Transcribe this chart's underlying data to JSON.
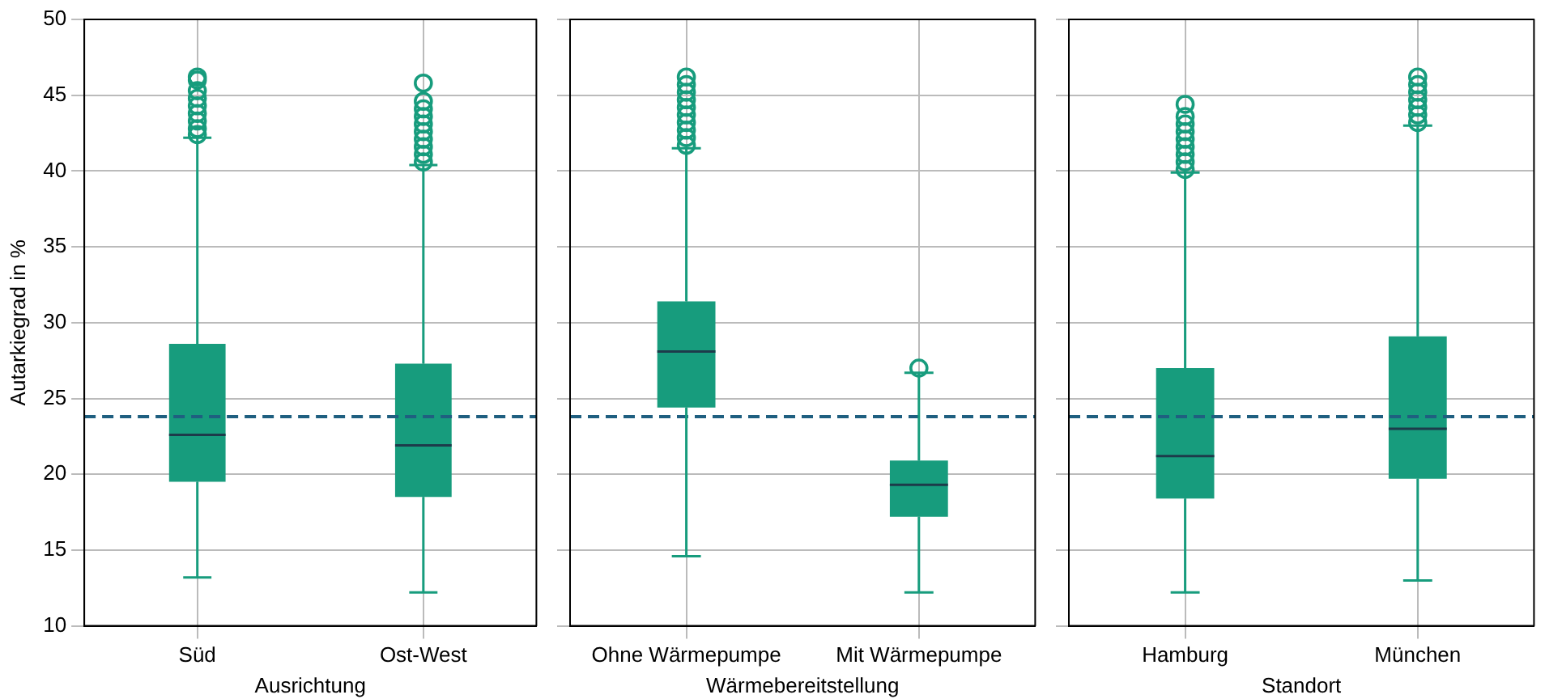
{
  "chart_data": [
    {
      "type": "box",
      "categories": [
        "Süd",
        "Ost-West"
      ],
      "xlabel": "Ausrichtung",
      "ylabel": "Autarkiegrad in %",
      "ylim": [
        10,
        50
      ],
      "yticks": [
        10,
        15,
        20,
        25,
        30,
        35,
        40,
        45,
        50
      ],
      "grid": true,
      "legend": false,
      "color": "#179c7d",
      "boxes": [
        {
          "low": 13.2,
          "q1": 19.5,
          "median": 22.6,
          "q3": 28.6,
          "high": 42.2,
          "outliers": [
            42.4,
            42.8,
            43.3,
            43.8,
            44.3,
            44.8,
            45.3,
            46.0,
            46.2
          ]
        },
        {
          "low": 12.2,
          "q1": 18.5,
          "median": 21.9,
          "q3": 27.3,
          "high": 40.4,
          "outliers": [
            40.6,
            41.1,
            41.6,
            42.1,
            42.6,
            43.1,
            43.6,
            44.1,
            44.6,
            45.8
          ]
        }
      ],
      "ref_lines": [
        {
          "axis": "y",
          "value": 23.8,
          "color": "#1f5f80",
          "line_style": "dashed"
        }
      ]
    },
    {
      "type": "box",
      "categories": [
        "Ohne Wärmepumpe",
        "Mit Wärmepumpe"
      ],
      "xlabel": "Wärmebereitstellung",
      "ylim": [
        10,
        50
      ],
      "yticks": [
        10,
        15,
        20,
        25,
        30,
        35,
        40,
        45,
        50
      ],
      "grid": true,
      "legend": false,
      "tick_labels": "x",
      "color": "#179c7d",
      "boxes": [
        {
          "low": 14.6,
          "q1": 24.4,
          "median": 28.1,
          "q3": 31.4,
          "high": 41.5,
          "outliers": [
            41.7,
            42.2,
            42.7,
            43.2,
            43.7,
            44.2,
            44.7,
            45.2,
            45.7,
            46.2
          ]
        },
        {
          "low": 12.2,
          "q1": 17.2,
          "median": 19.3,
          "q3": 20.9,
          "high": 26.7,
          "outliers": [
            27.0
          ]
        }
      ],
      "ref_lines": [
        {
          "axis": "y",
          "value": 23.8,
          "color": "#1f5f80",
          "line_style": "dashed"
        }
      ]
    },
    {
      "type": "box",
      "categories": [
        "Hamburg",
        "München"
      ],
      "xlabel": "Standort",
      "ylim": [
        10,
        50
      ],
      "yticks": [
        10,
        15,
        20,
        25,
        30,
        35,
        40,
        45,
        50
      ],
      "grid": true,
      "legend": false,
      "tick_labels": "x",
      "color": "#179c7d",
      "boxes": [
        {
          "low": 12.2,
          "q1": 18.4,
          "median": 21.2,
          "q3": 27.0,
          "high": 39.9,
          "outliers": [
            40.1,
            40.6,
            41.1,
            41.6,
            42.1,
            42.6,
            43.1,
            43.6,
            44.4
          ]
        },
        {
          "low": 13.0,
          "q1": 19.7,
          "median": 23.0,
          "q3": 29.1,
          "high": 43.0,
          "outliers": [
            43.2,
            43.7,
            44.2,
            44.7,
            45.2,
            45.7,
            46.2
          ]
        }
      ],
      "ref_lines": [
        {
          "axis": "y",
          "value": 23.8,
          "color": "#1f5f80",
          "line_style": "dashed"
        }
      ]
    }
  ]
}
